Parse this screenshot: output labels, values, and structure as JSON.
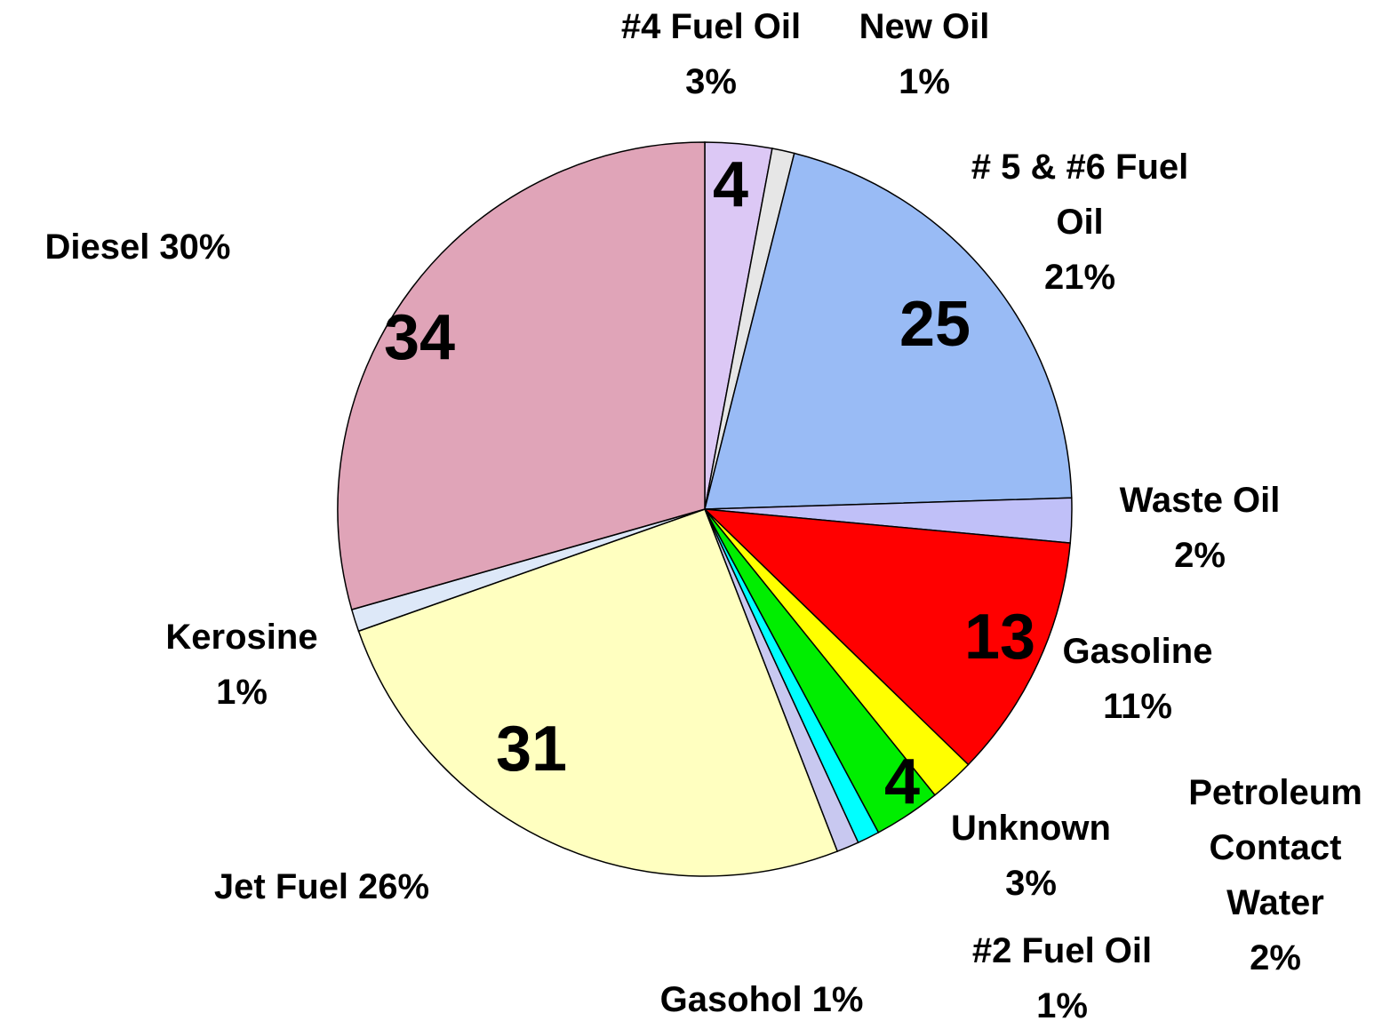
{
  "chart_data": {
    "type": "pie",
    "categories": [
      "#4 Fuel Oil",
      "New Oil",
      "# 5 & #6 Fuel Oil",
      "Waste Oil",
      "Gasoline",
      "Petroleum Contact Water",
      "Unknown",
      "#2 Fuel Oil",
      "Gasohol",
      "Jet Fuel",
      "Kerosine",
      "Diesel"
    ],
    "values": [
      3,
      1,
      21,
      2,
      11,
      2,
      3,
      1,
      1,
      26,
      1,
      30
    ],
    "value_labels": [
      "3%",
      "1%",
      "21%",
      "2%",
      "11%",
      "2%",
      "3%",
      "1%",
      "1%",
      "26%",
      "1%",
      "30%"
    ],
    "counts": [
      4,
      null,
      25,
      null,
      13,
      null,
      4,
      null,
      null,
      31,
      null,
      34
    ],
    "colors": [
      "#dcc8f5",
      "#e6e6e6",
      "#99bbf5",
      "#c0c0f8",
      "#ff0000",
      "#ffff00",
      "#00ee00",
      "#00ffff",
      "#c8c8f0",
      "#ffffc0",
      "#dde8f8",
      "#e0a4b8"
    ]
  }
}
